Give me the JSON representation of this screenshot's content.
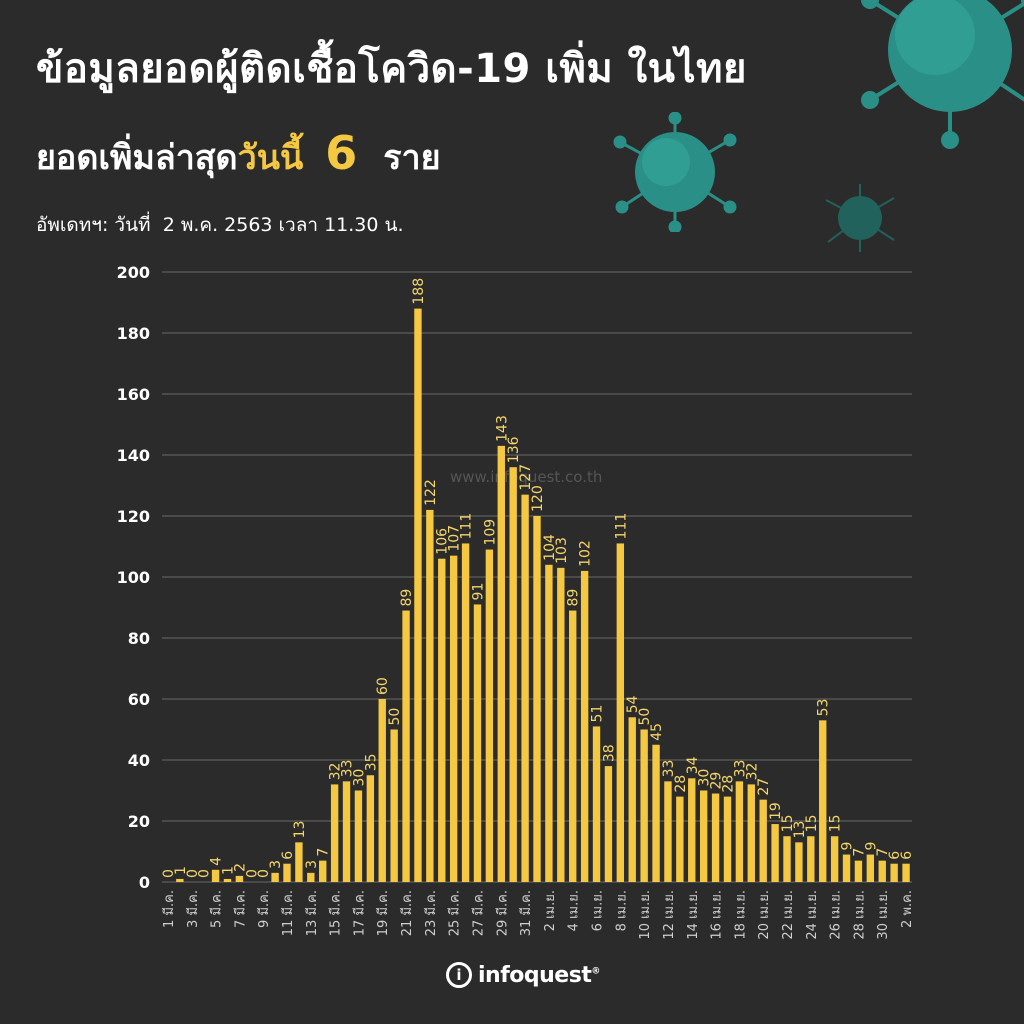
{
  "header": {
    "title": "ข้อมูลยอดผู้ติดเชื้อโควิด-19 เพิ่ม ในไทย",
    "subtitle_prefix": "ยอดเพิ่มล่าสุด",
    "subtitle_highlight": "วันนี้",
    "subtitle_number": "6",
    "subtitle_unit": "ราย",
    "update_label": "อัพเดทฯ: วันที่",
    "update_value": "2 พ.ค. 2563 เวลา 11.30 น."
  },
  "watermark": "www.infoquest.co.th",
  "logo": {
    "name": "infoquest",
    "mark": "i",
    "registered": "®"
  },
  "colors": {
    "background": "#2b2b2b",
    "bar": "#f5c842",
    "highlight": "#f5c842",
    "virus": "#2a8f86"
  },
  "chart_data": {
    "type": "bar",
    "title": "",
    "xlabel": "",
    "ylabel": "",
    "ylim": [
      0,
      200
    ],
    "yticks": [
      0,
      20,
      40,
      60,
      80,
      100,
      120,
      140,
      160,
      180,
      200
    ],
    "grid": true,
    "values": [
      0,
      1,
      0,
      0,
      4,
      1,
      2,
      0,
      0,
      3,
      6,
      13,
      3,
      7,
      32,
      33,
      30,
      35,
      60,
      50,
      89,
      188,
      122,
      106,
      107,
      111,
      91,
      109,
      143,
      136,
      127,
      120,
      104,
      103,
      89,
      102,
      51,
      38,
      111,
      54,
      50,
      45,
      33,
      28,
      34,
      30,
      29,
      28,
      33,
      32,
      27,
      19,
      15,
      13,
      15,
      53,
      15,
      9,
      7,
      9,
      7,
      6,
      6
    ],
    "tick_labels": [
      {
        "index": 0,
        "label": "1 มี.ค."
      },
      {
        "index": 2,
        "label": "3 มี.ค."
      },
      {
        "index": 4,
        "label": "5 มี.ค."
      },
      {
        "index": 6,
        "label": "7 มี.ค."
      },
      {
        "index": 8,
        "label": "9 มี.ค."
      },
      {
        "index": 10,
        "label": "11 มี.ค."
      },
      {
        "index": 12,
        "label": "13 มี.ค."
      },
      {
        "index": 14,
        "label": "15 มี.ค."
      },
      {
        "index": 16,
        "label": "17 มี.ค."
      },
      {
        "index": 18,
        "label": "19 มี.ค."
      },
      {
        "index": 20,
        "label": "21 มี.ค."
      },
      {
        "index": 22,
        "label": "23 มี.ค."
      },
      {
        "index": 24,
        "label": "25 มี.ค."
      },
      {
        "index": 26,
        "label": "27 มี.ค."
      },
      {
        "index": 28,
        "label": "29 มี.ค."
      },
      {
        "index": 30,
        "label": "31 มี.ค."
      },
      {
        "index": 32,
        "label": "2 เม.ย."
      },
      {
        "index": 34,
        "label": "4 เม.ย."
      },
      {
        "index": 36,
        "label": "6 เม.ย."
      },
      {
        "index": 38,
        "label": "8 เม.ย."
      },
      {
        "index": 40,
        "label": "10 เม.ย."
      },
      {
        "index": 42,
        "label": "12 เม.ย."
      },
      {
        "index": 44,
        "label": "14 เม.ย."
      },
      {
        "index": 46,
        "label": "16 เม.ย."
      },
      {
        "index": 48,
        "label": "18 เม.ย."
      },
      {
        "index": 50,
        "label": "20 เม.ย."
      },
      {
        "index": 52,
        "label": "22 เม.ย."
      },
      {
        "index": 54,
        "label": "24 เม.ย."
      },
      {
        "index": 56,
        "label": "26 เม.ย."
      },
      {
        "index": 58,
        "label": "28 เม.ย."
      },
      {
        "index": 60,
        "label": "30 เม.ย."
      },
      {
        "index": 62,
        "label": "2 พ.ค."
      }
    ]
  }
}
